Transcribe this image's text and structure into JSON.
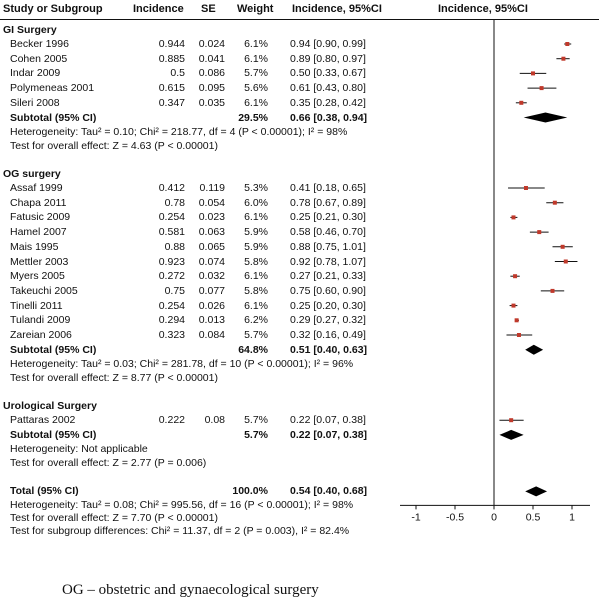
{
  "headers": {
    "study": "Study or Subgroup",
    "incidence": "Incidence",
    "se": "SE",
    "weight": "Weight",
    "ci": "Incidence, 95%CI",
    "plot": "Incidence, 95%CI"
  },
  "groups": [
    {
      "title": "GI Surgery",
      "studies": [
        {
          "name": "Becker 1996",
          "incidence": "0.944",
          "se": "0.024",
          "weight": "6.1%",
          "ci": "0.94 [0.90, 0.99]"
        },
        {
          "name": "Cohen 2005",
          "incidence": "0.885",
          "se": "0.041",
          "weight": "6.1%",
          "ci": "0.89 [0.80, 0.97]"
        },
        {
          "name": "Indar 2009",
          "incidence": "0.5",
          "se": "0.086",
          "weight": "5.7%",
          "ci": "0.50 [0.33, 0.67]"
        },
        {
          "name": "Polymeneas 2001",
          "incidence": "0.615",
          "se": "0.095",
          "weight": "5.6%",
          "ci": "0.61 [0.43, 0.80]"
        },
        {
          "name": "Sileri 2008",
          "incidence": "0.347",
          "se": "0.035",
          "weight": "6.1%",
          "ci": "0.35 [0.28, 0.42]"
        }
      ],
      "subtotal": {
        "label": "Subtotal (95% CI)",
        "weight": "29.5%",
        "ci": "0.66 [0.38, 0.94]"
      },
      "heterogeneity": "Heterogeneity: Tau² = 0.10; Chi² = 218.77, df = 4 (P < 0.00001); I² = 98%",
      "overall": "Test for overall effect: Z = 4.63 (P < 0.00001)"
    },
    {
      "title": "OG surgery",
      "studies": [
        {
          "name": "Assaf 1999",
          "incidence": "0.412",
          "se": "0.119",
          "weight": "5.3%",
          "ci": "0.41 [0.18, 0.65]"
        },
        {
          "name": "Chapa 2011",
          "incidence": "0.78",
          "se": "0.054",
          "weight": "6.0%",
          "ci": "0.78 [0.67, 0.89]"
        },
        {
          "name": "Fatusic 2009",
          "incidence": "0.254",
          "se": "0.023",
          "weight": "6.1%",
          "ci": "0.25 [0.21, 0.30]"
        },
        {
          "name": "Hamel 2007",
          "incidence": "0.581",
          "se": "0.063",
          "weight": "5.9%",
          "ci": "0.58 [0.46, 0.70]"
        },
        {
          "name": "Mais 1995",
          "incidence": "0.88",
          "se": "0.065",
          "weight": "5.9%",
          "ci": "0.88 [0.75, 1.01]"
        },
        {
          "name": "Mettler 2003",
          "incidence": "0.923",
          "se": "0.074",
          "weight": "5.8%",
          "ci": "0.92 [0.78, 1.07]"
        },
        {
          "name": "Myers 2005",
          "incidence": "0.272",
          "se": "0.032",
          "weight": "6.1%",
          "ci": "0.27 [0.21, 0.33]"
        },
        {
          "name": "Takeuchi 2005",
          "incidence": "0.75",
          "se": "0.077",
          "weight": "5.8%",
          "ci": "0.75 [0.60, 0.90]"
        },
        {
          "name": "Tinelli 2011",
          "incidence": "0.254",
          "se": "0.026",
          "weight": "6.1%",
          "ci": "0.25 [0.20, 0.30]"
        },
        {
          "name": "Tulandi 2009",
          "incidence": "0.294",
          "se": "0.013",
          "weight": "6.2%",
          "ci": "0.29 [0.27, 0.32]"
        },
        {
          "name": "Zareian 2006",
          "incidence": "0.323",
          "se": "0.084",
          "weight": "5.7%",
          "ci": "0.32 [0.16, 0.49]"
        }
      ],
      "subtotal": {
        "label": "Subtotal (95% CI)",
        "weight": "64.8%",
        "ci": "0.51 [0.40, 0.63]"
      },
      "heterogeneity": "Heterogeneity: Tau² = 0.03; Chi² = 281.78, df = 10 (P < 0.00001); I² = 96%",
      "overall": "Test for overall effect: Z = 8.77 (P < 0.00001)"
    },
    {
      "title": "Urological Surgery",
      "studies": [
        {
          "name": "Pattaras 2002",
          "incidence": "0.222",
          "se": "0.08",
          "weight": "5.7%",
          "ci": "0.22 [0.07, 0.38]"
        }
      ],
      "subtotal": {
        "label": "Subtotal (95% CI)",
        "weight": "5.7%",
        "ci": "0.22 [0.07, 0.38]"
      },
      "heterogeneity": "Heterogeneity: Not applicable",
      "overall": "Test for overall effect: Z = 2.77 (P = 0.006)"
    }
  ],
  "total": {
    "label": "Total (95% CI)",
    "weight": "100.0%",
    "ci": "0.54 [0.40, 0.68]",
    "heterogeneity": "Heterogeneity: Tau² = 0.08; Chi² = 995.56, df = 16 (P < 0.00001); I² = 98%",
    "overall": "Test for overall effect: Z = 7.70 (P < 0.00001)",
    "subgroup": "Test for subgroup differences: Chi² = 11.37, df = 2 (P = 0.003), I² = 82.4%"
  },
  "caption": "OG – obstetric and gynaecological surgery",
  "colors": {
    "point": "#c0392b",
    "line": "#111111",
    "diamond": "#000000"
  },
  "chart_data": {
    "type": "forest",
    "xlim": [
      -1,
      1
    ],
    "ticks": [
      "-1",
      "-0.5",
      "0",
      "0.5",
      "1"
    ],
    "reference_line": 0,
    "studies": [
      {
        "group": "GI Surgery",
        "name": "Becker 1996",
        "est": 0.94,
        "lo": 0.9,
        "hi": 0.99
      },
      {
        "group": "GI Surgery",
        "name": "Cohen 2005",
        "est": 0.89,
        "lo": 0.8,
        "hi": 0.97
      },
      {
        "group": "GI Surgery",
        "name": "Indar 2009",
        "est": 0.5,
        "lo": 0.33,
        "hi": 0.67
      },
      {
        "group": "GI Surgery",
        "name": "Polymeneas 2001",
        "est": 0.61,
        "lo": 0.43,
        "hi": 0.8
      },
      {
        "group": "GI Surgery",
        "name": "Sileri 2008",
        "est": 0.35,
        "lo": 0.28,
        "hi": 0.42
      },
      {
        "group": "OG surgery",
        "name": "Assaf 1999",
        "est": 0.41,
        "lo": 0.18,
        "hi": 0.65
      },
      {
        "group": "OG surgery",
        "name": "Chapa 2011",
        "est": 0.78,
        "lo": 0.67,
        "hi": 0.89
      },
      {
        "group": "OG surgery",
        "name": "Fatusic 2009",
        "est": 0.25,
        "lo": 0.21,
        "hi": 0.3
      },
      {
        "group": "OG surgery",
        "name": "Hamel 2007",
        "est": 0.58,
        "lo": 0.46,
        "hi": 0.7
      },
      {
        "group": "OG surgery",
        "name": "Mais 1995",
        "est": 0.88,
        "lo": 0.75,
        "hi": 1.01
      },
      {
        "group": "OG surgery",
        "name": "Mettler 2003",
        "est": 0.92,
        "lo": 0.78,
        "hi": 1.07
      },
      {
        "group": "OG surgery",
        "name": "Myers 2005",
        "est": 0.27,
        "lo": 0.21,
        "hi": 0.33
      },
      {
        "group": "OG surgery",
        "name": "Takeuchi 2005",
        "est": 0.75,
        "lo": 0.6,
        "hi": 0.9
      },
      {
        "group": "OG surgery",
        "name": "Tinelli 2011",
        "est": 0.25,
        "lo": 0.2,
        "hi": 0.3
      },
      {
        "group": "OG surgery",
        "name": "Tulandi 2009",
        "est": 0.29,
        "lo": 0.27,
        "hi": 0.32
      },
      {
        "group": "OG surgery",
        "name": "Zareian 2006",
        "est": 0.32,
        "lo": 0.16,
        "hi": 0.49
      },
      {
        "group": "Urological Surgery",
        "name": "Pattaras 2002",
        "est": 0.22,
        "lo": 0.07,
        "hi": 0.38
      }
    ],
    "pooled": [
      {
        "name": "GI Surgery subtotal",
        "est": 0.66,
        "lo": 0.38,
        "hi": 0.94
      },
      {
        "name": "OG surgery subtotal",
        "est": 0.51,
        "lo": 0.4,
        "hi": 0.63
      },
      {
        "name": "Urological Surgery subtotal",
        "est": 0.22,
        "lo": 0.07,
        "hi": 0.38
      },
      {
        "name": "Total",
        "est": 0.54,
        "lo": 0.4,
        "hi": 0.68
      }
    ]
  }
}
